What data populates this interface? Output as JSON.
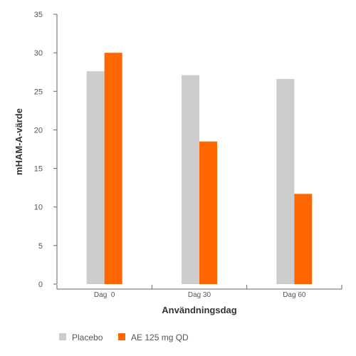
{
  "chart_data": {
    "type": "bar",
    "title": "",
    "xlabel": "Användningsdag",
    "ylabel": "mHAM-A-värde",
    "categories": [
      "Dag  0",
      "Dag 30",
      "Dag 60"
    ],
    "series": [
      {
        "name": "Placebo",
        "values": [
          27.6,
          27.1,
          26.6
        ],
        "color": "#cccccc"
      },
      {
        "name": "AE 125 mg QD",
        "values": [
          30.0,
          18.5,
          11.7
        ],
        "color": "#ff6600"
      }
    ],
    "ylim": [
      0,
      35
    ],
    "yticks": [
      0,
      5,
      10,
      15,
      20,
      25,
      30,
      35
    ],
    "grid": false,
    "legend_position": "bottom-left"
  }
}
